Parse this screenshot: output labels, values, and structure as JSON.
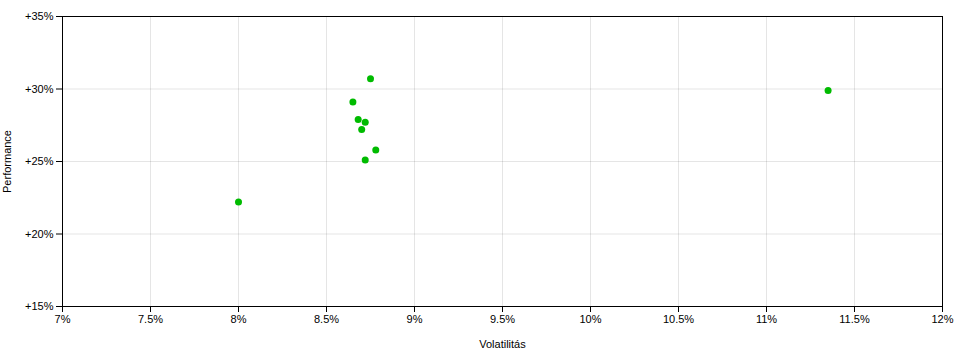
{
  "chart_data": {
    "type": "scatter",
    "xlabel": "Volatilitás",
    "ylabel": "Performance",
    "x": [
      0.0875,
      0.0865,
      0.0868,
      0.0872,
      0.087,
      0.0878,
      0.0872,
      0.08,
      0.1135
    ],
    "values": [
      0.307,
      0.291,
      0.279,
      0.277,
      0.272,
      0.258,
      0.251,
      0.222,
      0.299
    ],
    "color": "#00bb00",
    "xlim": [
      0.07,
      0.12
    ],
    "ylim": [
      0.15,
      0.35
    ],
    "xticks": [
      {
        "value": 0.07,
        "label": "7%"
      },
      {
        "value": 0.075,
        "label": "7.5%"
      },
      {
        "value": 0.08,
        "label": "8%"
      },
      {
        "value": 0.085,
        "label": "8.5%"
      },
      {
        "value": 0.09,
        "label": "9%"
      },
      {
        "value": 0.095,
        "label": "9.5%"
      },
      {
        "value": 0.1,
        "label": "10%"
      },
      {
        "value": 0.105,
        "label": "10.5%"
      },
      {
        "value": 0.11,
        "label": "11%"
      },
      {
        "value": 0.115,
        "label": "11.5%"
      },
      {
        "value": 0.12,
        "label": "12%"
      }
    ],
    "yticks": [
      {
        "value": 0.15,
        "label": "+15%"
      },
      {
        "value": 0.2,
        "label": "+20%"
      },
      {
        "value": 0.25,
        "label": "+25%"
      },
      {
        "value": 0.3,
        "label": "+30%"
      },
      {
        "value": 0.35,
        "label": "+35%"
      }
    ],
    "grid": true
  }
}
